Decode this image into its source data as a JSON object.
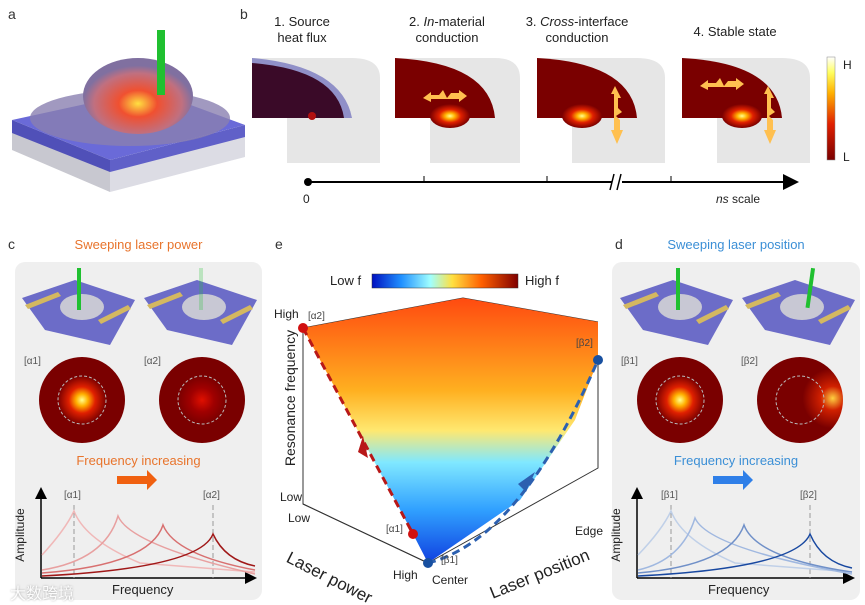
{
  "panel_a": {
    "label": "a"
  },
  "panel_b": {
    "label": "b",
    "steps": [
      {
        "line1": "1. Source",
        "line2": "heat flux"
      },
      {
        "line1_italic": "In",
        "line1": "-material",
        "line2": "conduction"
      },
      {
        "prefix": "3. ",
        "line1_italic": "Cross",
        "line1": "-interface",
        "line2": "conduction"
      },
      {
        "line1": "4. Stable state"
      }
    ],
    "step2_prefix": "2. ",
    "colorbar": {
      "high": "H",
      "low": "L"
    },
    "timeline": {
      "start": "0",
      "end_italic": "ns",
      "end": " scale"
    }
  },
  "panel_c": {
    "label": "c",
    "title": "Sweeping laser power",
    "states": [
      "[α1]",
      "[α2]"
    ],
    "freq_text": "Frequency increasing",
    "plot": {
      "ylabel": "Amplitude",
      "xlabel": "Frequency",
      "markers": [
        "[α1]",
        "[α2]"
      ]
    }
  },
  "panel_d": {
    "label": "d",
    "title": "Sweeping laser position",
    "states": [
      "[β1]",
      "[β2]"
    ],
    "freq_text": "Frequency increasing",
    "plot": {
      "ylabel": "Amplitude",
      "xlabel": "Frequency",
      "markers": [
        "[β1]",
        "[β2]"
      ]
    }
  },
  "panel_e": {
    "label": "e",
    "colorbar": {
      "low": "Low f",
      "high": "High f"
    },
    "zaxis": {
      "label": "Resonance frequency",
      "high": "High",
      "low": "Low"
    },
    "power_axis": {
      "label": "Laser power",
      "low": "Low",
      "high": "High"
    },
    "position_axis": {
      "label": "Laser position",
      "center": "Center",
      "edge": "Edge"
    },
    "points": [
      "[α1]",
      "[α2]",
      "[β1]",
      "[β2]"
    ]
  },
  "watermark": "大数跨境",
  "colors": {
    "orange": "#e8742c",
    "blue": "#3b8fd6",
    "darkred": "#7a0000"
  }
}
